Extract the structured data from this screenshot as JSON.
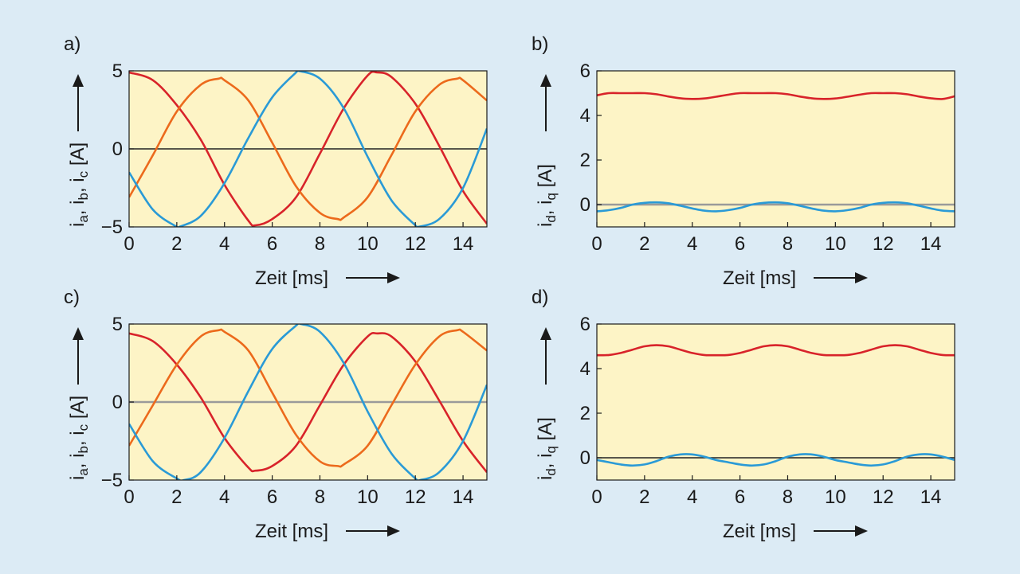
{
  "colors": {
    "background": "#dcebf5",
    "plot_area": "#fdf4c6",
    "red": "#d8232a",
    "orange": "#ec6a1c",
    "blue": "#2a9ad6",
    "zero_dark": "#222222",
    "zero_gray": "#9a9a9a"
  },
  "chart_data": [
    {
      "panel": "a)",
      "type": "line",
      "xlabel": "Zeit [ms]",
      "ylabel_parts": [
        [
          "i",
          "a"
        ],
        [
          "i",
          "b"
        ],
        [
          "i",
          "c"
        ]
      ],
      "ylabel_unit": " [A]",
      "xlim": [
        0,
        15
      ],
      "ylim": [
        -5,
        5
      ],
      "xticks": [
        0,
        2,
        4,
        6,
        8,
        10,
        12,
        14
      ],
      "yticks": [
        -5,
        0,
        5
      ],
      "zero_line": "dark",
      "series": [
        {
          "color": "red",
          "x": [
            0,
            1,
            2,
            3,
            4,
            5,
            5.3,
            6,
            7,
            8,
            9,
            10,
            10.4,
            11,
            12,
            13,
            14,
            15
          ],
          "y": [
            4.9,
            4.4,
            2.8,
            0.6,
            -2.3,
            -4.6,
            -4.9,
            -4.5,
            -3.1,
            -0.3,
            2.6,
            4.7,
            4.9,
            4.6,
            2.9,
            0.2,
            -2.7,
            -4.8
          ]
        },
        {
          "color": "orange",
          "x": [
            0,
            1,
            2,
            3,
            3.75,
            4,
            5,
            6,
            7,
            8,
            8.75,
            9,
            10,
            11,
            12,
            13,
            13.75,
            14,
            15
          ],
          "y": [
            -3.1,
            -0.4,
            2.4,
            4.1,
            4.5,
            4.4,
            3.1,
            0.4,
            -2.4,
            -4.1,
            -4.5,
            -4.4,
            -3.1,
            -0.4,
            2.4,
            4.1,
            4.5,
            4.4,
            3.1
          ]
        },
        {
          "color": "blue",
          "x": [
            0,
            1,
            2,
            2.1,
            3,
            4,
            5,
            6,
            7,
            7.1,
            8,
            9,
            10,
            11,
            12,
            12.1,
            13,
            14,
            15
          ],
          "y": [
            -1.5,
            -3.9,
            -5,
            -5,
            -4.3,
            -2.2,
            0.7,
            3.3,
            4.9,
            5,
            4.5,
            2.6,
            -0.5,
            -3.3,
            -4.9,
            -5,
            -4.5,
            -2.5,
            1.3
          ]
        }
      ]
    },
    {
      "panel": "b)",
      "type": "line",
      "xlabel": "Zeit [ms]",
      "ylabel_parts": [
        [
          "i",
          "d"
        ],
        [
          "i",
          "q"
        ]
      ],
      "ylabel_unit": " [A]",
      "xlim": [
        0,
        15
      ],
      "ylim": [
        -1,
        6
      ],
      "xticks": [
        0,
        2,
        4,
        6,
        8,
        10,
        12,
        14
      ],
      "yticks": [
        0,
        2,
        4,
        6
      ],
      "zero_line": "gray",
      "series": [
        {
          "color": "red",
          "x": [
            0,
            0.5,
            1,
            1.5,
            2,
            2.5,
            3,
            3.5,
            4,
            4.5,
            5,
            5.5,
            6,
            6.5,
            7,
            7.5,
            8,
            8.5,
            9,
            9.5,
            10,
            10.5,
            11,
            11.5,
            12,
            12.5,
            13,
            13.5,
            14,
            14.5,
            15
          ],
          "y": [
            4.9,
            5,
            5,
            5,
            5,
            4.95,
            4.85,
            4.77,
            4.74,
            4.76,
            4.84,
            4.93,
            5,
            5,
            5,
            5,
            4.95,
            4.85,
            4.77,
            4.74,
            4.76,
            4.84,
            4.93,
            5,
            5,
            5,
            4.95,
            4.85,
            4.77,
            4.74,
            4.86
          ]
        },
        {
          "color": "blue",
          "x": [
            0,
            0.5,
            1,
            1.5,
            2,
            2.5,
            3,
            3.5,
            4,
            4.5,
            5,
            5.5,
            6,
            6.5,
            7,
            7.5,
            8,
            8.5,
            9,
            9.5,
            10,
            10.5,
            11,
            11.5,
            12,
            12.5,
            13,
            13.5,
            14,
            14.5,
            15
          ],
          "y": [
            -0.3,
            -0.25,
            -0.15,
            0,
            0.08,
            0.1,
            0.06,
            -0.05,
            -0.17,
            -0.27,
            -0.3,
            -0.25,
            -0.15,
            0,
            0.08,
            0.1,
            0.06,
            -0.05,
            -0.17,
            -0.27,
            -0.3,
            -0.25,
            -0.15,
            0,
            0.08,
            0.1,
            0.06,
            -0.05,
            -0.17,
            -0.27,
            -0.3
          ]
        }
      ]
    },
    {
      "panel": "c)",
      "type": "line",
      "xlabel": "Zeit [ms]",
      "ylabel_parts": [
        [
          "i",
          "a"
        ],
        [
          "i",
          "b"
        ],
        [
          "i",
          "c"
        ]
      ],
      "ylabel_unit": " [A]",
      "xlim": [
        0,
        15
      ],
      "ylim": [
        -5,
        5
      ],
      "xticks": [
        0,
        2,
        4,
        6,
        8,
        10,
        12,
        14
      ],
      "yticks": [
        -5,
        0,
        5
      ],
      "zero_line": "gray",
      "series": [
        {
          "color": "red",
          "x": [
            0,
            1,
            2,
            3,
            4,
            5,
            5.3,
            6,
            7,
            8,
            9,
            10,
            10.4,
            11,
            12,
            13,
            14,
            15
          ],
          "y": [
            4.4,
            3.9,
            2.4,
            0.3,
            -2.3,
            -4.2,
            -4.4,
            -4.1,
            -2.8,
            -0.2,
            2.4,
            4.2,
            4.4,
            4.2,
            2.6,
            0.1,
            -2.5,
            -4.5
          ]
        },
        {
          "color": "orange",
          "x": [
            0,
            1,
            2,
            3,
            3.75,
            4,
            5,
            6,
            7,
            8,
            8.75,
            9,
            10,
            11,
            12,
            13,
            13.75,
            14,
            15
          ],
          "y": [
            -2.8,
            -0.2,
            2.4,
            4.2,
            4.6,
            4.5,
            3.3,
            0.6,
            -2.1,
            -3.8,
            -4.1,
            -4,
            -2.8,
            -0.2,
            2.4,
            4.2,
            4.6,
            4.5,
            3.3
          ]
        },
        {
          "color": "blue",
          "x": [
            0,
            1,
            2,
            2.3,
            3,
            4,
            5,
            6,
            7,
            7.2,
            8,
            9,
            10,
            11,
            12,
            12.2,
            13,
            14,
            15
          ],
          "y": [
            -1.4,
            -3.8,
            -4.9,
            -5,
            -4.5,
            -2.3,
            0.7,
            3.4,
            4.9,
            5,
            4.5,
            2.5,
            -0.6,
            -3.3,
            -4.9,
            -5,
            -4.5,
            -2.5,
            1.1
          ]
        }
      ]
    },
    {
      "panel": "d)",
      "type": "line",
      "xlabel": "Zeit [ms]",
      "ylabel_parts": [
        [
          "i",
          "d"
        ],
        [
          "i",
          "q"
        ]
      ],
      "ylabel_unit": " [A]",
      "xlim": [
        0,
        15
      ],
      "ylim": [
        -1,
        6
      ],
      "xticks": [
        0,
        2,
        4,
        6,
        8,
        10,
        12,
        14
      ],
      "yticks": [
        0,
        2,
        4,
        6
      ],
      "zero_line": "dark",
      "series": [
        {
          "color": "red",
          "x": [
            0,
            0.5,
            1,
            1.5,
            2,
            2.5,
            3,
            3.5,
            4,
            4.5,
            5,
            5.5,
            6,
            6.5,
            7,
            7.5,
            8,
            8.5,
            9,
            9.5,
            10,
            10.5,
            11,
            11.5,
            12,
            12.5,
            13,
            13.5,
            14,
            14.5,
            15
          ],
          "y": [
            4.6,
            4.61,
            4.7,
            4.85,
            5,
            5.05,
            5,
            4.85,
            4.7,
            4.61,
            4.6,
            4.61,
            4.7,
            4.85,
            5,
            5.05,
            5,
            4.85,
            4.7,
            4.61,
            4.6,
            4.61,
            4.7,
            4.85,
            5,
            5.05,
            5,
            4.85,
            4.7,
            4.61,
            4.6
          ]
        },
        {
          "color": "blue",
          "x": [
            0,
            0.5,
            1,
            1.5,
            2,
            2.5,
            3,
            3.5,
            4,
            4.5,
            5,
            5.5,
            6,
            6.5,
            7,
            7.5,
            8,
            8.5,
            9,
            9.5,
            10,
            10.5,
            11,
            11.5,
            12,
            12.5,
            13,
            13.5,
            14,
            14.5,
            15
          ],
          "y": [
            -0.1,
            -0.2,
            -0.3,
            -0.35,
            -0.3,
            -0.15,
            0.05,
            0.15,
            0.15,
            0.05,
            -0.1,
            -0.2,
            -0.3,
            -0.35,
            -0.3,
            -0.15,
            0.05,
            0.15,
            0.15,
            0.05,
            -0.1,
            -0.2,
            -0.3,
            -0.35,
            -0.3,
            -0.15,
            0.05,
            0.15,
            0.15,
            0.05,
            -0.1
          ]
        }
      ]
    }
  ]
}
